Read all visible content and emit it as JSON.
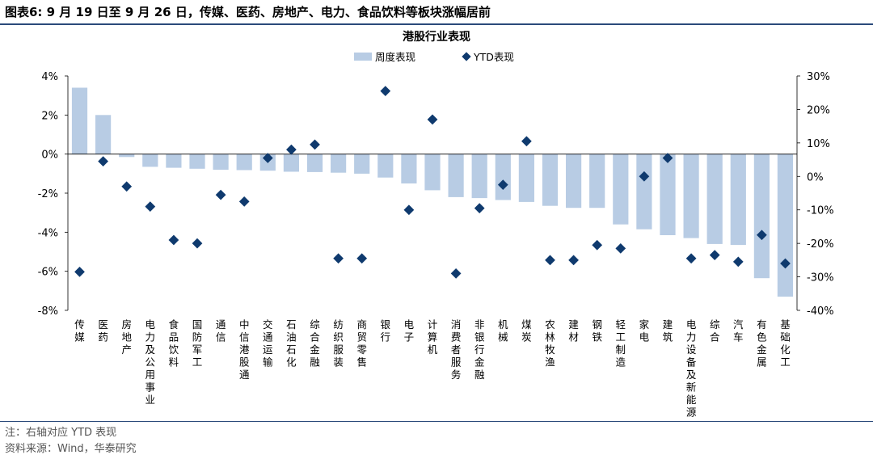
{
  "figure": {
    "title": "图表6:  9 月 19 日至 9 月 26 日，传媒、医药、房地产、电力、食品饮料等板块涨幅居前",
    "note": "注：右轴对应 YTD 表现",
    "source": "资料来源：Wind，华泰研究"
  },
  "colors": {
    "bar": "#b8cce4",
    "marker": "#0f3a6e",
    "axis": "#000000",
    "rule": "#2b4a7a"
  },
  "chart_data": {
    "type": "bar",
    "title": "港股行业表现",
    "legend_position": "top-center",
    "grid": false,
    "categories": [
      "传媒",
      "医药",
      "房地产",
      "电力及公用事业",
      "食品饮料",
      "国防军工",
      "通信",
      "中信港股通",
      "交通运输",
      "石油石化",
      "综合金融",
      "纺织服装",
      "商贸零售",
      "银行",
      "电子",
      "计算机",
      "消费者服务",
      "非银行金融",
      "机械",
      "煤炭",
      "农林牧渔",
      "建材",
      "钢铁",
      "轻工制造",
      "家电",
      "建筑",
      "电力设备及新能源",
      "综合",
      "汽车",
      "有色金属",
      "基础化工"
    ],
    "series": [
      {
        "name": "周度表现",
        "type": "bar",
        "axis": "left",
        "unit": "%",
        "values": [
          3.4,
          2.0,
          -0.15,
          -0.65,
          -0.7,
          -0.75,
          -0.8,
          -0.82,
          -0.85,
          -0.9,
          -0.92,
          -0.95,
          -1.0,
          -1.2,
          -1.5,
          -1.85,
          -2.2,
          -2.25,
          -2.35,
          -2.45,
          -2.65,
          -2.75,
          -2.75,
          -3.6,
          -3.85,
          -4.15,
          -4.3,
          -4.6,
          -4.65,
          -6.35,
          -7.3
        ]
      },
      {
        "name": "YTD表现",
        "type": "scatter",
        "axis": "right",
        "unit": "%",
        "values": [
          -28.5,
          4.5,
          -3.0,
          -9.0,
          -19.0,
          -20.0,
          -5.5,
          -7.5,
          5.5,
          8.0,
          9.5,
          -24.5,
          -24.5,
          25.5,
          -10.0,
          17.0,
          -29.0,
          -9.5,
          -2.5,
          10.5,
          -25.0,
          -25.0,
          -20.5,
          -21.5,
          0.0,
          5.5,
          -24.5,
          -23.5,
          -25.5,
          -17.5,
          -26.0
        ]
      }
    ],
    "y_left": {
      "ylim": [
        -8,
        4
      ],
      "ticks": [
        "4%",
        "2%",
        "0%",
        "-2%",
        "-4%",
        "-6%",
        "-8%"
      ]
    },
    "y_right": {
      "ylim": [
        -40,
        30
      ],
      "ticks": [
        "30%",
        "20%",
        "10%",
        "0%",
        "-10%",
        "-20%",
        "-30%",
        "-40%"
      ]
    }
  }
}
